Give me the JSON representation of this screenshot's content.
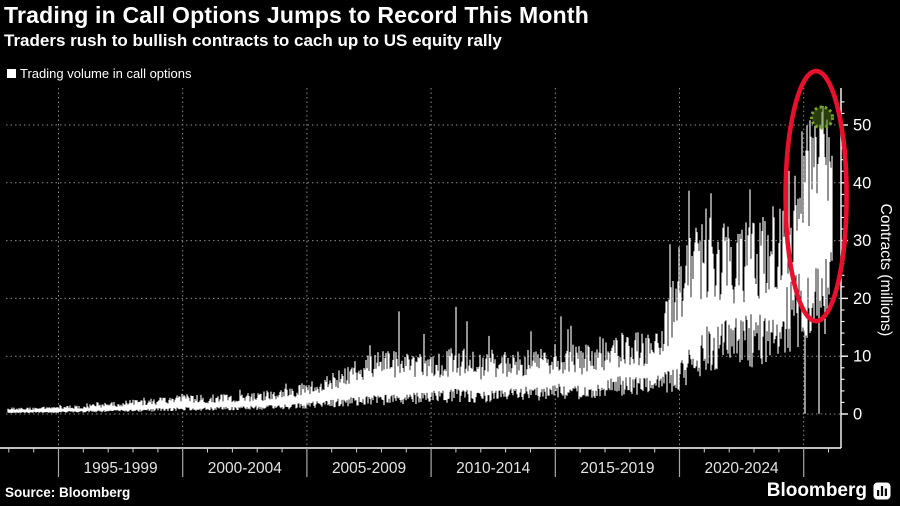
{
  "header": {
    "title": "Trading in Call Options Jumps to Record This Month",
    "subtitle": "Traders rush to bullish contracts to cach up to US equity rally"
  },
  "legend": {
    "label": "Trading volume in call options"
  },
  "footer": {
    "source": "Source: Bloomberg",
    "brand": "Bloomberg"
  },
  "colors": {
    "background": "#000000",
    "text": "#ffffff",
    "series": "#ffffff",
    "grid": "#8a8a8a",
    "axis": "#ffffff",
    "tick_minor": "#cfcfcf",
    "period_divider": "#a8a8a8",
    "period_label": "#e3e3e3",
    "highlight_ellipse": "#e8112d",
    "peak_marker_stroke": "#79a623",
    "peak_marker_fill": "#4a6e16"
  },
  "chart_data": {
    "type": "bar",
    "series_name": "Trading volume in call options",
    "ylabel": "Contracts (millions)",
    "ylim": [
      0,
      55
    ],
    "yticks": [
      0,
      10,
      20,
      30,
      40,
      50
    ],
    "y_minor_step": 2,
    "grid": "dotted",
    "legend_position": "top-left",
    "x_start_year": 1993,
    "x_end_year": 2026.2,
    "period_dividers": [
      1995,
      2000,
      2005,
      2010,
      2015,
      2020,
      2025
    ],
    "period_labels": [
      "1995-1999",
      "2000-2004",
      "2005-2009",
      "2010-2014",
      "2015-2019",
      "2020-2024"
    ],
    "envelope_columns": [
      "year",
      "typical_low",
      "typical_high",
      "spike_max"
    ],
    "envelope_by_year": [
      [
        1993,
        0.3,
        0.9,
        1.3
      ],
      [
        1994,
        0.35,
        1.0,
        1.45
      ],
      [
        1995,
        0.4,
        1.1,
        1.6
      ],
      [
        1996,
        0.5,
        1.3,
        2.0
      ],
      [
        1997,
        0.6,
        1.6,
        2.5
      ],
      [
        1998,
        0.75,
        2.0,
        3.0
      ],
      [
        1999,
        0.9,
        2.3,
        3.3
      ],
      [
        2000,
        1.1,
        2.8,
        4.0
      ],
      [
        2001,
        1.1,
        2.6,
        3.7
      ],
      [
        2002,
        1.2,
        2.8,
        4.2
      ],
      [
        2003,
        1.3,
        3.0,
        4.5
      ],
      [
        2004,
        1.5,
        3.6,
        5.2
      ],
      [
        2005,
        1.9,
        4.3,
        6.5
      ],
      [
        2006,
        2.3,
        5.6,
        9.0
      ],
      [
        2007,
        2.8,
        7.6,
        13.0
      ],
      [
        2008,
        3.0,
        9.2,
        16.0
      ],
      [
        2009,
        3.2,
        8.6,
        21.5
      ],
      [
        2010,
        3.6,
        8.2,
        17.0
      ],
      [
        2011,
        4.0,
        9.6,
        22.5
      ],
      [
        2012,
        3.6,
        8.2,
        14.0
      ],
      [
        2013,
        4.0,
        8.6,
        15.0
      ],
      [
        2014,
        4.4,
        9.2,
        16.0
      ],
      [
        2015,
        5.0,
        10.0,
        17.5
      ],
      [
        2016,
        5.0,
        9.6,
        15.0
      ],
      [
        2017,
        5.4,
        10.0,
        14.0
      ],
      [
        2018,
        6.4,
        12.0,
        18.0
      ],
      [
        2019,
        6.0,
        11.2,
        16.5
      ],
      [
        2020,
        8.0,
        21.0,
        38.0
      ],
      [
        2021,
        14.0,
        29.0,
        40.0
      ],
      [
        2022,
        15.0,
        26.0,
        34.0
      ],
      [
        2023,
        16.0,
        27.5,
        40.0
      ],
      [
        2024,
        19.0,
        31.0,
        40.0
      ],
      [
        2025,
        24.0,
        40.0,
        48.0
      ],
      [
        2026,
        28.0,
        46.0,
        52.0
      ]
    ],
    "events": {
      "record_peak": {
        "year": 2025.75,
        "value": 52.3,
        "marker": "green-dashed-circle"
      },
      "zero_volume_drop_years": [
        2025.05,
        2025.62
      ],
      "highlight_region": {
        "shape": "red-ellipse",
        "year_center": 2025.5,
        "value_center": 37.7
      }
    }
  }
}
